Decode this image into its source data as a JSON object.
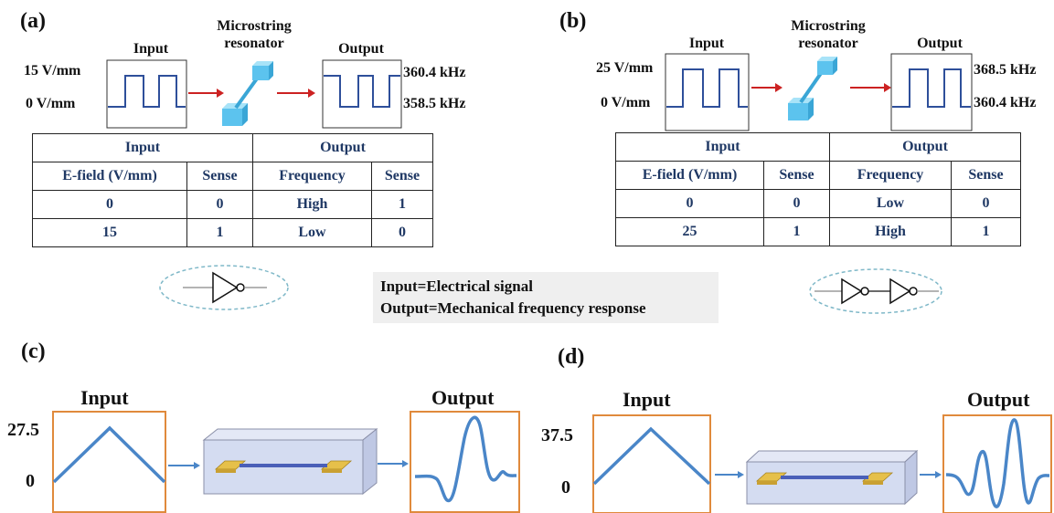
{
  "panel_a": {
    "label": "(a)",
    "input_title": "Input",
    "resonator_title": [
      "Microstring",
      "resonator"
    ],
    "output_title": "Output",
    "input_high": "15 V/mm",
    "input_low": "0 V/mm",
    "output_high": "360.4 kHz",
    "output_low": "358.5 kHz",
    "table": {
      "groups": [
        "Input",
        "Output"
      ],
      "headers": [
        "E-field (V/mm)",
        "Sense",
        "Frequency",
        "Sense"
      ],
      "rows": [
        [
          "0",
          "0",
          "High",
          "1"
        ],
        [
          "15",
          "1",
          "Low",
          "0"
        ]
      ]
    }
  },
  "panel_b": {
    "label": "(b)",
    "input_title": "Input",
    "resonator_title": [
      "Microstring",
      "resonator"
    ],
    "output_title": "Output",
    "input_high": "25 V/mm",
    "input_low": "0 V/mm",
    "output_high": "368.5 kHz",
    "output_low": "360.4 kHz",
    "table": {
      "groups": [
        "Input",
        "Output"
      ],
      "headers": [
        "E-field (V/mm)",
        "Sense",
        "Frequency",
        "Sense"
      ],
      "rows": [
        [
          "0",
          "0",
          "Low",
          "0"
        ],
        [
          "25",
          "1",
          "High",
          "1"
        ]
      ]
    }
  },
  "legend": {
    "line1": "Input=Electrical signal",
    "line2": "Output=Mechanical frequency response"
  },
  "panel_c": {
    "label": "(c)",
    "input_title": "Input",
    "output_title": "Output",
    "y_max": "27.5",
    "y_min": "0"
  },
  "panel_d": {
    "label": "(d)",
    "input_title": "Input",
    "output_title": "Output",
    "y_max": "37.5",
    "y_min": "0"
  },
  "colors": {
    "signal": "#2e4f9a",
    "arrow_red": "#cc2222",
    "table_text": "#1f3864",
    "orange_box": "#e08a3c",
    "wave_blue": "#4a86c8",
    "cube": "#5cc3ee"
  },
  "icons": {
    "gate_a": "not-gate-icon",
    "gate_b": "buffer-double-inverter-icon",
    "resonator": "microstring-resonator-icon",
    "device": "microstring-device-icon"
  }
}
